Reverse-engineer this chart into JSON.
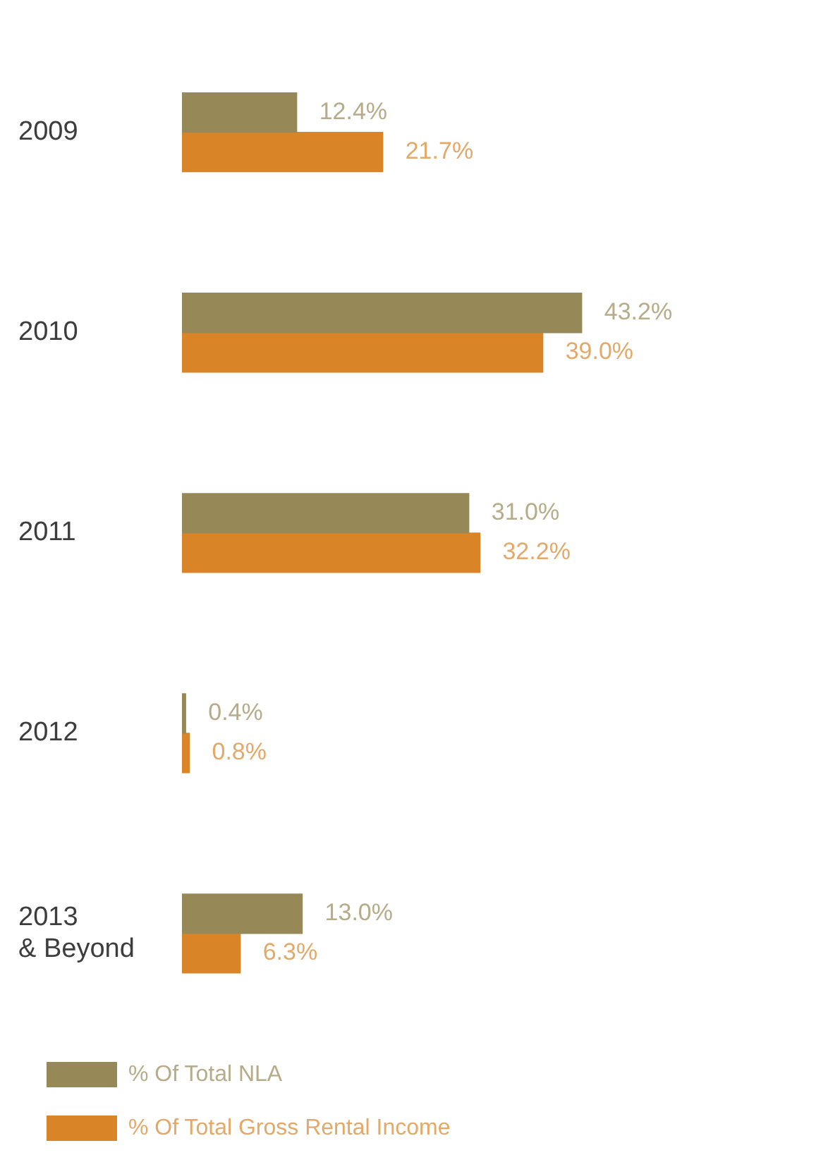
{
  "chart_data": {
    "type": "bar",
    "orientation": "horizontal",
    "categories": [
      "2009",
      "2010",
      "2011",
      "2012",
      "2013\n& Beyond"
    ],
    "series": [
      {
        "name": "% Of Total NLA",
        "color": "#978857",
        "values": [
          12.4,
          43.2,
          31.0,
          0.4,
          13.0
        ],
        "value_labels": [
          "12.4%",
          "43.2%",
          "31.0%",
          "0.4%",
          "13.0%"
        ]
      },
      {
        "name": "% Of Total Gross Rental Income",
        "color": "#d98427",
        "values": [
          21.7,
          39.0,
          32.2,
          0.8,
          6.3
        ],
        "value_labels": [
          "21.7%",
          "39.0%",
          "32.2%",
          "0.8%",
          "6.3%"
        ]
      }
    ],
    "tick_labels": "y",
    "grid": false,
    "legend": "bottom"
  }
}
